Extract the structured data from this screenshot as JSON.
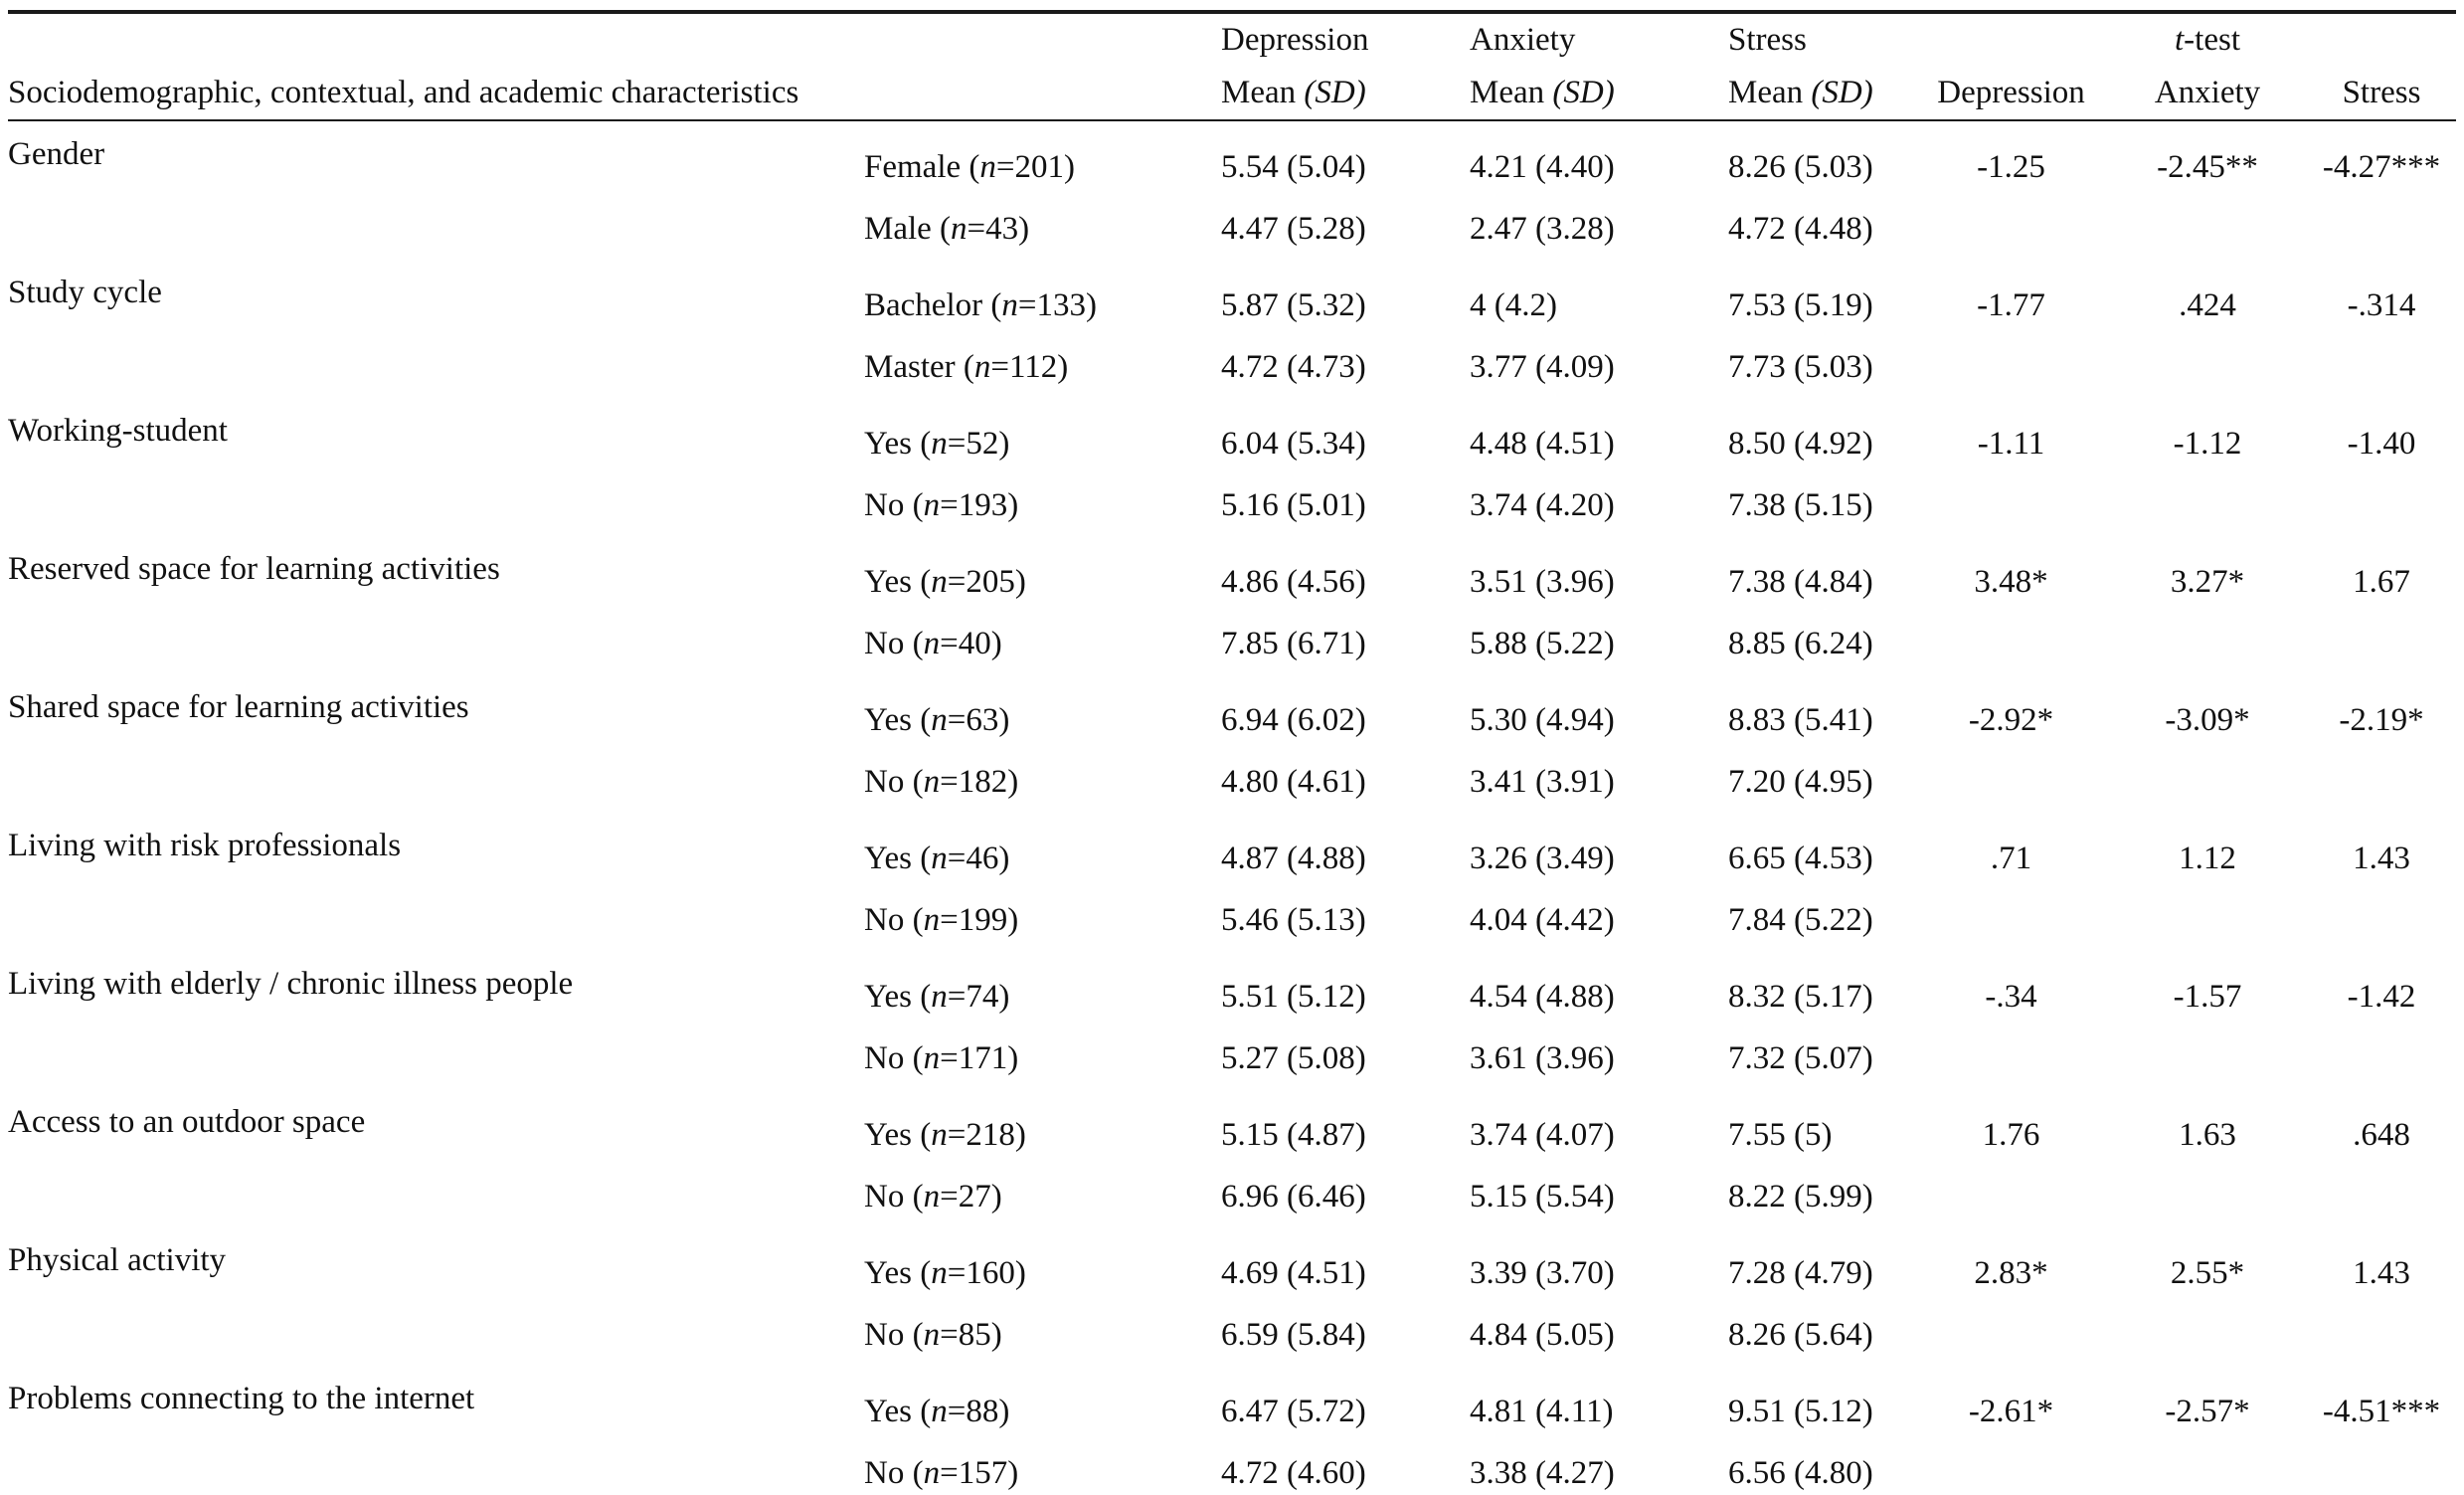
{
  "table": {
    "header": {
      "characteristics": "Sociodemographic, contextual, and academic characteristics",
      "depression": "Depression",
      "anxiety": "Anxiety",
      "stress": "Stress",
      "ttest_t": "t",
      "ttest_rest": "-test",
      "mean": "Mean",
      "sd": "(SD)",
      "t_depression": "Depression",
      "t_anxiety": "Anxiety",
      "t_stress": "Stress"
    },
    "group_paren_open": "(",
    "group_n_symbol": "n",
    "group_equals": "=",
    "group_paren_close": ")",
    "sections": [
      {
        "characteristic": "Gender",
        "t": {
          "depression": "-1.25",
          "anxiety": "-2.45**",
          "stress": "-4.27***"
        },
        "rows": [
          {
            "group": "Female",
            "n": "201",
            "depression": "5.54 (5.04)",
            "anxiety": "4.21 (4.40)",
            "stress": "8.26 (5.03)"
          },
          {
            "group": "Male",
            "n": "43",
            "depression": "4.47 (5.28)",
            "anxiety": "2.47 (3.28)",
            "stress": "4.72 (4.48)"
          }
        ]
      },
      {
        "characteristic": "Study cycle",
        "t": {
          "depression": "-1.77",
          "anxiety": ".424",
          "stress": "-.314"
        },
        "rows": [
          {
            "group": "Bachelor",
            "n": "133",
            "depression": "5.87 (5.32)",
            "anxiety": "4  (4.2)",
            "stress": "7.53 (5.19)"
          },
          {
            "group": "Master",
            "n": "112",
            "depression": "4.72 (4.73)",
            "anxiety": "3.77 (4.09)",
            "stress": "7.73 (5.03)"
          }
        ]
      },
      {
        "characteristic": "Working-student",
        "t": {
          "depression": "-1.11",
          "anxiety": "-1.12",
          "stress": "-1.40"
        },
        "rows": [
          {
            "group": "Yes",
            "n": "52",
            "depression": "6.04 (5.34)",
            "anxiety": "4.48 (4.51)",
            "stress": "8.50 (4.92)"
          },
          {
            "group": "No",
            "n": "193",
            "depression": "5.16 (5.01)",
            "anxiety": "3.74 (4.20)",
            "stress": "7.38 (5.15)"
          }
        ]
      },
      {
        "characteristic": "Reserved space for learning activities",
        "t": {
          "depression": "3.48*",
          "anxiety": "3.27*",
          "stress": "1.67"
        },
        "rows": [
          {
            "group": "Yes",
            "n": "205",
            "depression": "4.86 (4.56)",
            "anxiety": "3.51 (3.96)",
            "stress": "7.38 (4.84)"
          },
          {
            "group": "No",
            "n": "40",
            "depression": "7.85 (6.71)",
            "anxiety": "5.88 (5.22)",
            "stress": "8.85 (6.24)"
          }
        ]
      },
      {
        "characteristic": "Shared space for learning activities",
        "t": {
          "depression": "-2.92*",
          "anxiety": "-3.09*",
          "stress": "-2.19*"
        },
        "rows": [
          {
            "group": "Yes",
            "n": "63",
            "depression": "6.94 (6.02)",
            "anxiety": "5.30 (4.94)",
            "stress": "8.83 (5.41)"
          },
          {
            "group": "No",
            "n": "182",
            "depression": "4.80 (4.61)",
            "anxiety": "3.41 (3.91)",
            "stress": "7.20 (4.95)"
          }
        ]
      },
      {
        "characteristic": "Living with risk professionals",
        "t": {
          "depression": ".71",
          "anxiety": "1.12",
          "stress": "1.43"
        },
        "rows": [
          {
            "group": "Yes",
            "n": "46",
            "depression": "4.87 (4.88)",
            "anxiety": "3.26 (3.49)",
            "stress": "6.65 (4.53)"
          },
          {
            "group": "No",
            "n": "199",
            "depression": "5.46 (5.13)",
            "anxiety": "4.04 (4.42)",
            "stress": "7.84 (5.22)"
          }
        ]
      },
      {
        "characteristic": "Living with elderly / chronic illness people",
        "t": {
          "depression": "-.34",
          "anxiety": "-1.57",
          "stress": "-1.42"
        },
        "rows": [
          {
            "group": "Yes",
            "n": "74",
            "depression": "5.51 (5.12)",
            "anxiety": "4.54 (4.88)",
            "stress": "8.32 (5.17)"
          },
          {
            "group": "No",
            "n": "171",
            "depression": "5.27 (5.08)",
            "anxiety": "3.61 (3.96)",
            "stress": "7.32 (5.07)"
          }
        ]
      },
      {
        "characteristic": "Access to an outdoor space",
        "t": {
          "depression": "1.76",
          "anxiety": "1.63",
          "stress": ".648"
        },
        "rows": [
          {
            "group": "Yes",
            "n": "218",
            "depression": "5.15 (4.87)",
            "anxiety": "3.74 (4.07)",
            "stress": "7.55 (5)"
          },
          {
            "group": "No",
            "n": "27",
            "depression": "6.96 (6.46)",
            "anxiety": "5.15 (5.54)",
            "stress": "8.22 (5.99)"
          }
        ]
      },
      {
        "characteristic": "Physical activity",
        "t": {
          "depression": "2.83*",
          "anxiety": "2.55*",
          "stress": "1.43"
        },
        "rows": [
          {
            "group": "Yes",
            "n": "160",
            "depression": "4.69 (4.51)",
            "anxiety": "3.39 (3.70)",
            "stress": "7.28 (4.79)"
          },
          {
            "group": "No",
            "n": "85",
            "depression": "6.59 (5.84)",
            "anxiety": "4.84 (5.05)",
            "stress": "8.26 (5.64)"
          }
        ]
      },
      {
        "characteristic": "Problems connecting to the internet",
        "t": {
          "depression": "-2.61*",
          "anxiety": "-2.57*",
          "stress": "-4.51***"
        },
        "rows": [
          {
            "group": "Yes",
            "n": "88",
            "depression": "6.47 (5.72)",
            "anxiety": "4.81 (4.11)",
            "stress": "9.51 (5.12)"
          },
          {
            "group": "No",
            "n": "157",
            "depression": "4.72 (4.60)",
            "anxiety": "3.38 (4.27)",
            "stress": "6.56 (4.80)"
          }
        ]
      }
    ]
  }
}
